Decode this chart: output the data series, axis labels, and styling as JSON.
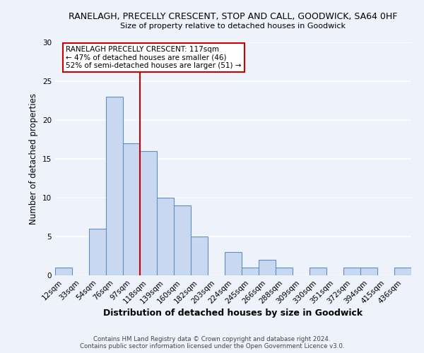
{
  "title1": "RANELAGH, PRECELLY CRESCENT, STOP AND CALL, GOODWICK, SA64 0HF",
  "title2": "Size of property relative to detached houses in Goodwick",
  "xlabel": "Distribution of detached houses by size in Goodwick",
  "ylabel": "Number of detached properties",
  "bar_color": "#c8d8f0",
  "bar_edge_color": "#6090c0",
  "bin_labels": [
    "12sqm",
    "33sqm",
    "54sqm",
    "76sqm",
    "97sqm",
    "118sqm",
    "139sqm",
    "160sqm",
    "182sqm",
    "203sqm",
    "224sqm",
    "245sqm",
    "266sqm",
    "288sqm",
    "309sqm",
    "330sqm",
    "351sqm",
    "372sqm",
    "394sqm",
    "415sqm",
    "436sqm"
  ],
  "bar_heights": [
    1,
    0,
    6,
    23,
    17,
    16,
    10,
    9,
    5,
    0,
    3,
    1,
    2,
    1,
    0,
    1,
    0,
    1,
    1,
    0,
    1
  ],
  "ylim": [
    0,
    30
  ],
  "yticks": [
    0,
    5,
    10,
    15,
    20,
    25,
    30
  ],
  "vline_x": 4.5,
  "vline_color": "#cc0000",
  "annotation_line1": "RANELAGH PRECELLY CRESCENT: 117sqm",
  "annotation_line2": "← 47% of detached houses are smaller (46)",
  "annotation_line3": "52% of semi-detached houses are larger (51) →",
  "annotation_box_color": "#ffffff",
  "annotation_box_edge": "#cc0000",
  "footer1": "Contains HM Land Registry data © Crown copyright and database right 2024.",
  "footer2": "Contains public sector information licensed under the Open Government Licence v3.0.",
  "background_color": "#eef2fb"
}
